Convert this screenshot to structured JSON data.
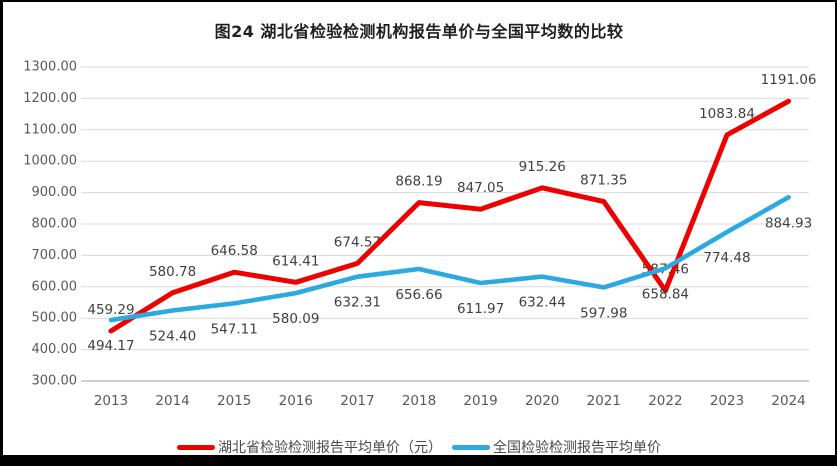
{
  "title": "图24 湖北省检验检测机构报告单价与全国平均数的比较",
  "chart_data": {
    "type": "line",
    "x": [
      "2013",
      "2014",
      "2015",
      "2016",
      "2017",
      "2018",
      "2019",
      "2020",
      "2021",
      "2022",
      "2023",
      "2024"
    ],
    "series": [
      {
        "name": "湖北省检验检测报告平均单价（元）",
        "color": "#ee0000",
        "label_position": "above",
        "values": [
          459.29,
          580.78,
          646.58,
          614.41,
          674.57,
          868.19,
          847.05,
          915.26,
          871.35,
          587.46,
          1083.84,
          1191.06
        ]
      },
      {
        "name": "全国检验检测报告平均单价",
        "color": "#2ba9e0",
        "label_position": "below",
        "values": [
          494.17,
          524.4,
          547.11,
          580.09,
          632.31,
          656.66,
          611.97,
          632.44,
          597.98,
          658.84,
          774.48,
          884.93
        ]
      }
    ],
    "ylim": [
      300,
      1300
    ],
    "yticks": [
      300,
      400,
      500,
      600,
      700,
      800,
      900,
      1000,
      1100,
      1200,
      1300
    ],
    "ytick_decimals": 2,
    "grid": true,
    "legend_position": "bottom"
  },
  "colors": {
    "red_series": "#ee0000",
    "blue_series": "#2ba9e0",
    "gridline": "#d9d9d9",
    "axis_line": "#bfbfbf",
    "axis_text": "#595959",
    "data_label_text": "#404040",
    "frame": "#000000",
    "background": "#ffffff"
  }
}
